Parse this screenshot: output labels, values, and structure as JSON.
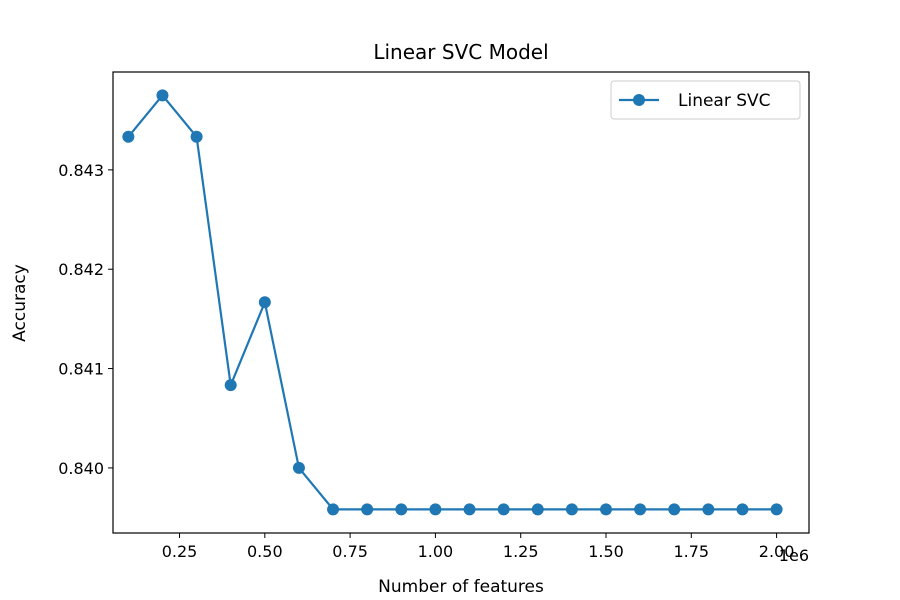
{
  "chart_data": {
    "type": "line",
    "title": "Linear SVC Model",
    "xlabel": "Number of features",
    "ylabel": "Accuracy",
    "x_offset_label": "1e6",
    "x_unit_multiplier": 1000000,
    "xlim": [
      55000,
      2095000
    ],
    "ylim": [
      0.839345,
      0.843985
    ],
    "x_ticks": [
      250000,
      500000,
      750000,
      1000000,
      1250000,
      1500000,
      1750000,
      2000000
    ],
    "x_tick_labels": [
      "0.25",
      "0.50",
      "0.75",
      "1.00",
      "1.25",
      "1.50",
      "1.75",
      "2.00"
    ],
    "y_ticks": [
      0.84,
      0.841,
      0.842,
      0.843
    ],
    "y_tick_labels": [
      "0.840",
      "0.841",
      "0.842",
      "0.843"
    ],
    "legend_position": "top-right",
    "grid": false,
    "series": [
      {
        "name": "Linear SVC",
        "color": "#1f77b4",
        "marker": "circle",
        "x": [
          100000,
          200000,
          300000,
          400000,
          500000,
          600000,
          700000,
          800000,
          900000,
          1000000,
          1100000,
          1200000,
          1300000,
          1400000,
          1500000,
          1600000,
          1700000,
          1800000,
          1900000,
          2000000
        ],
        "y": [
          0.843333,
          0.84375,
          0.843333,
          0.840833,
          0.841667,
          0.84,
          0.839583,
          0.839583,
          0.839583,
          0.839583,
          0.839583,
          0.839583,
          0.839583,
          0.839583,
          0.839583,
          0.839583,
          0.839583,
          0.839583,
          0.839583,
          0.839583
        ]
      }
    ]
  }
}
